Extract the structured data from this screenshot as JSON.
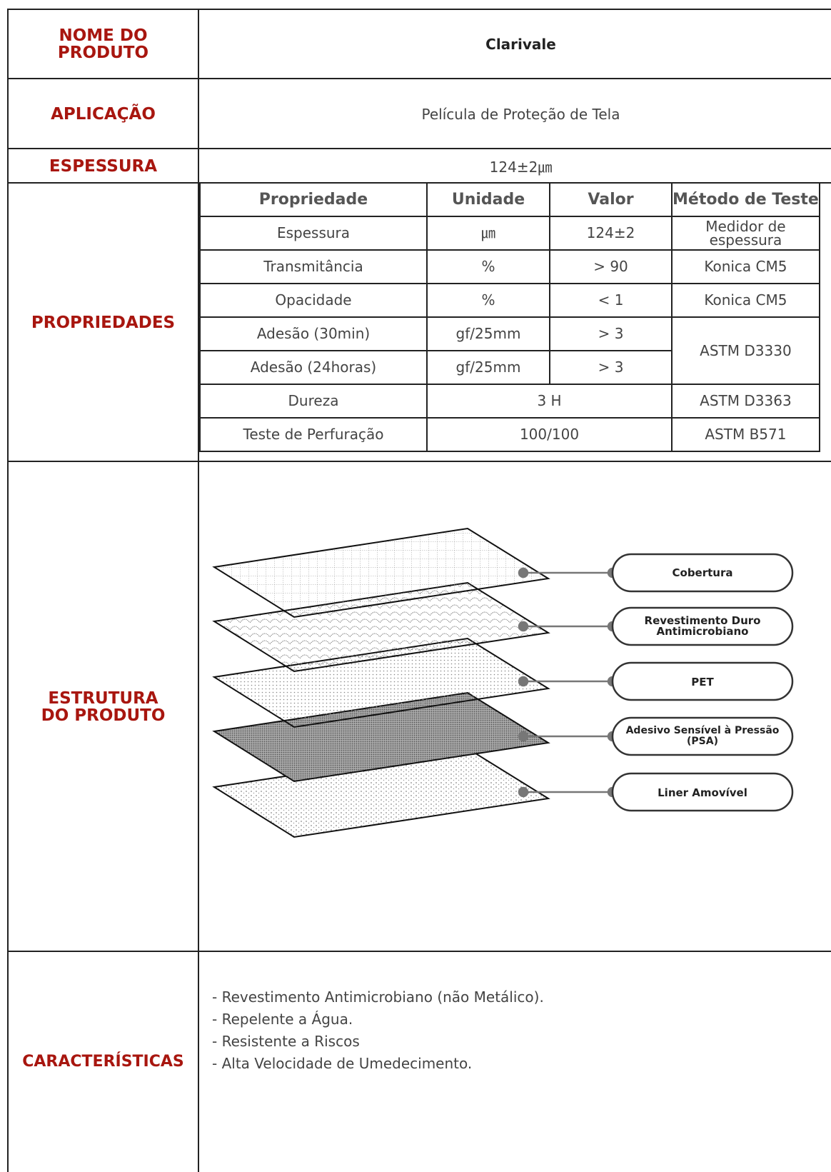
{
  "product_name": {
    "label": "NOME DO PRODUTO",
    "value": "Clarivale"
  },
  "application": {
    "label": "APLICAÇÃO",
    "value": "Película de Proteção de Tela"
  },
  "thickness": {
    "label": "ESPESSURA",
    "value": "124±2㎛"
  },
  "properties": {
    "label": "PROPRIEDADES",
    "header": [
      "Propriedade",
      "Unidade",
      "Valor",
      "Método de Teste"
    ],
    "rows": [
      [
        "Espessura",
        "㎛",
        "124±2",
        "Medidor de espessura"
      ],
      [
        "Transmitância",
        "%",
        "> 90",
        "Konica CM5"
      ],
      [
        "Opacidade",
        "%",
        "< 1",
        "Konica CM5"
      ],
      [
        "Adesão (30min)",
        "gf/25mm",
        "> 3",
        "ASTM D3330"
      ],
      [
        "Adesão (24horas)",
        "gf/25mm",
        "> 3"
      ],
      [
        "Dureza",
        "3 H",
        "ASTM D3363"
      ],
      [
        "Teste de Perfuração",
        "100/100",
        "ASTM B571"
      ]
    ]
  },
  "structure": {
    "label": "ESTRUTURA DO PRODUTO",
    "layers": [
      "Cobertura",
      "Revestimento Duro Antimicrobiano",
      "PET",
      "Adesivo Sensível à Pressão (PSA)",
      "Liner Amovível"
    ]
  },
  "features": {
    "label": "CARACTERÍSTICAS",
    "items": [
      "- Revestimento Antimicrobiano (não Metálico).",
      "- Repelente a Água.",
      "- Resistente a Riscos",
      "- Alta Velocidade de Umedecimento."
    ]
  }
}
